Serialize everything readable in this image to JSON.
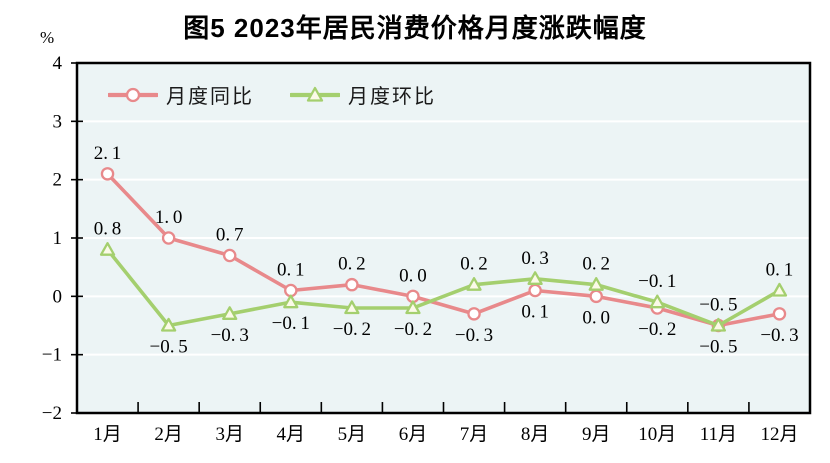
{
  "title": "图5  2023年居民消费价格月度涨跌幅度",
  "unit": "%",
  "colors": {
    "yoy_line": "#e8898b",
    "mom_line": "#a4cf6e",
    "circle_marker_fill": "#ffffff",
    "triangle_marker_fill": "#fbfae8",
    "plot_background": "#ecf4f5",
    "gridline": "#ffffff",
    "axis": "#000000",
    "text": "#000000"
  },
  "chart_data": {
    "type": "line",
    "title": "图5  2023年居民消费价格月度涨跌幅度",
    "unit": "%",
    "categories": [
      "1月",
      "2月",
      "3月",
      "4月",
      "5月",
      "6月",
      "7月",
      "8月",
      "9月",
      "10月",
      "11月",
      "12月"
    ],
    "series": [
      {
        "name": "月度同比",
        "marker": "circle",
        "color": "#e8898b",
        "marker_fill": "#ffffff",
        "values": [
          2.1,
          1.0,
          0.7,
          0.1,
          0.2,
          0.0,
          -0.3,
          0.1,
          0.0,
          -0.2,
          -0.5,
          -0.3
        ],
        "label_position": [
          "above",
          "above",
          "above",
          "above",
          "above",
          "above",
          "below",
          "below",
          "below",
          "below",
          "below",
          "below"
        ]
      },
      {
        "name": "月度环比",
        "marker": "triangle",
        "color": "#a4cf6e",
        "marker_fill": "#fbfae8",
        "values": [
          0.8,
          -0.5,
          -0.3,
          -0.1,
          -0.2,
          -0.2,
          0.2,
          0.3,
          0.2,
          -0.1,
          -0.5,
          0.1
        ],
        "label_position": [
          "above",
          "below",
          "below",
          "below",
          "below",
          "below",
          "above",
          "above",
          "above",
          "above",
          "above",
          "above"
        ]
      }
    ],
    "ylim": [
      -2,
      4
    ],
    "yticks": [
      4,
      3,
      2,
      1,
      0,
      -1,
      -2
    ],
    "grid": "horizontal",
    "legend_position": "top-left-inside",
    "plot_background": "#ecf4f5"
  }
}
